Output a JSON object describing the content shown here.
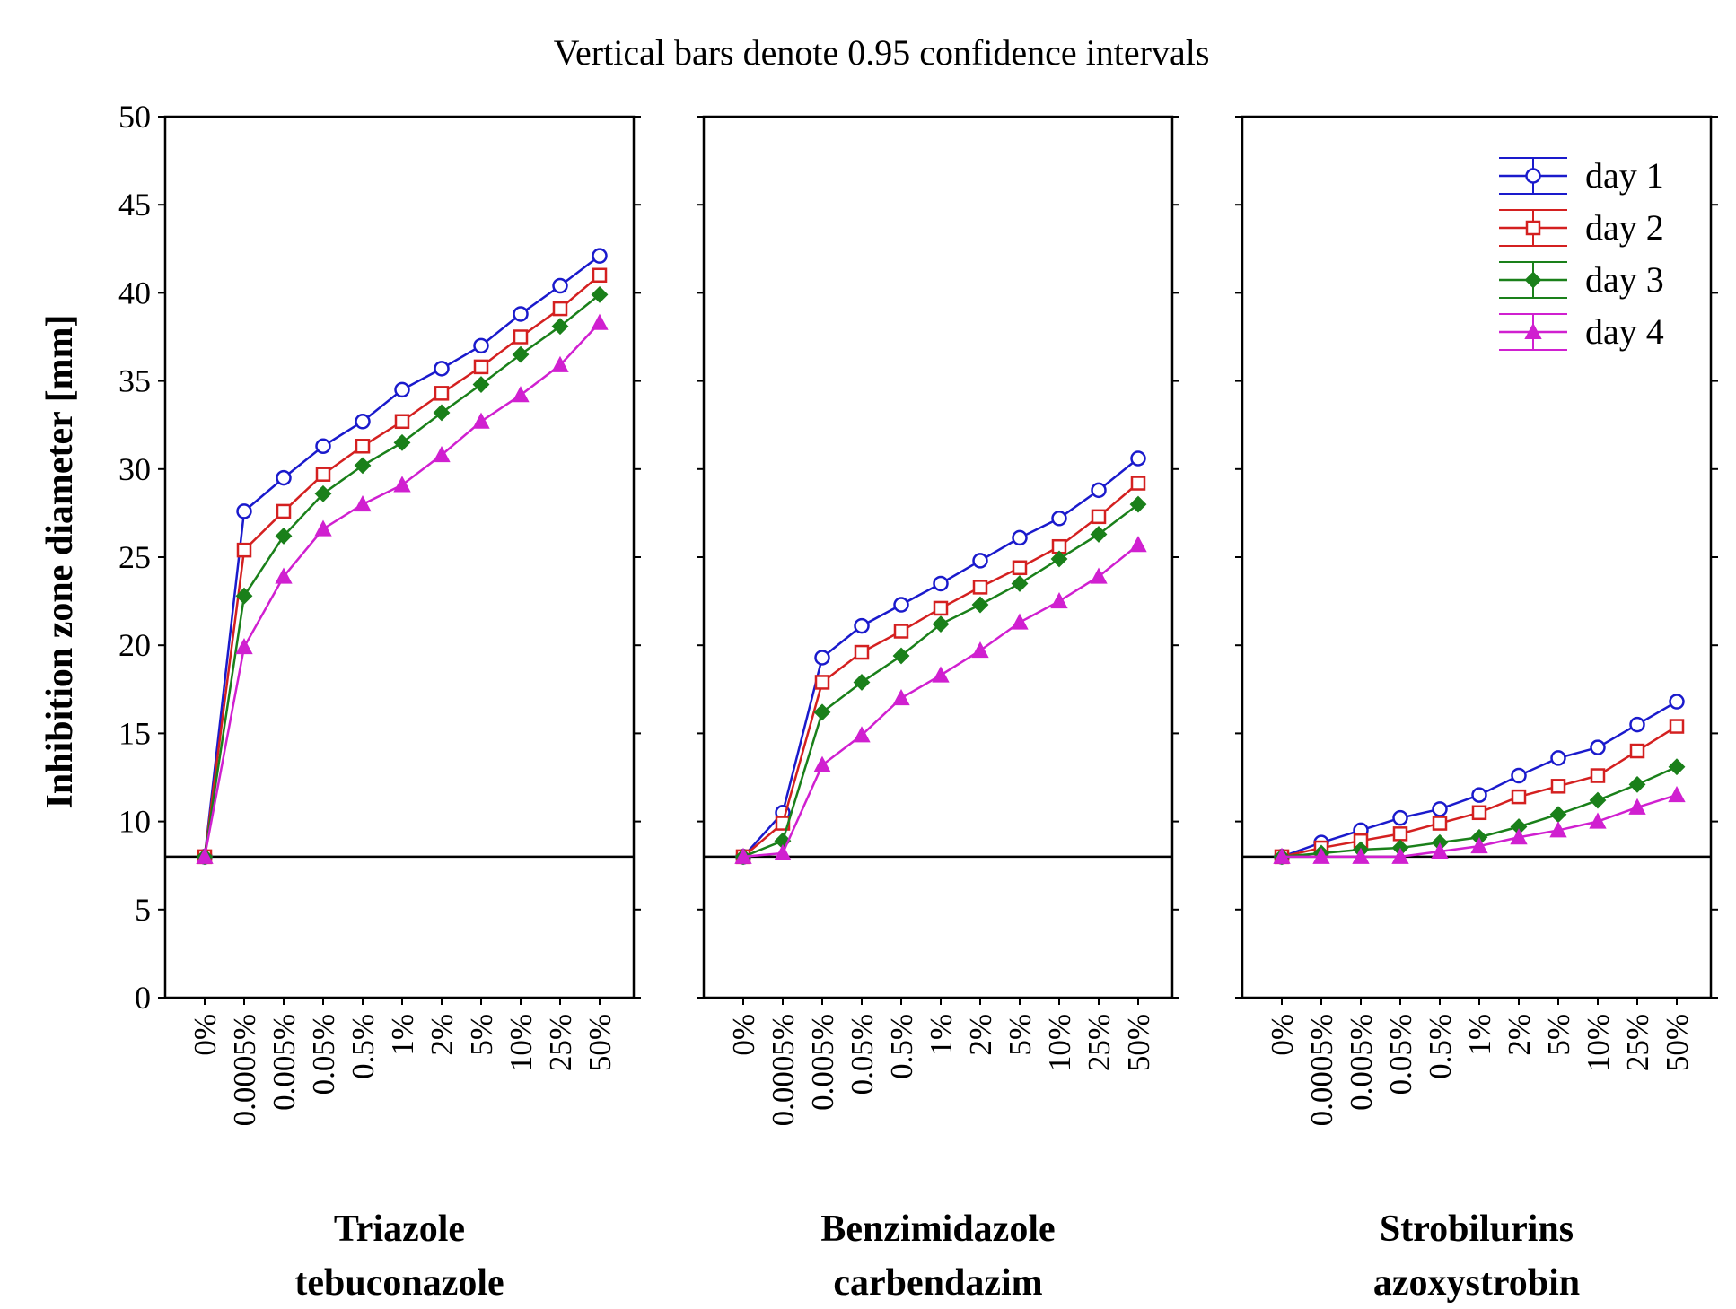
{
  "chart_data": {
    "type": "line",
    "title": "Vertical bars denote 0.95 confidence intervals",
    "ylabel": "Inhibition zone diameter [mm]",
    "ylim": [
      0,
      50
    ],
    "yticks": [
      0,
      5,
      10,
      15,
      20,
      25,
      30,
      35,
      40,
      45,
      50
    ],
    "reference_line": 8,
    "categories": [
      "0%",
      "0.0005%",
      "0.005%",
      "0.05%",
      "0.5%",
      "1%",
      "2%",
      "5%",
      "10%",
      "25%",
      "50%"
    ],
    "legend": {
      "placement": "top-right of third panel",
      "entries": [
        "day 1",
        "day 2",
        "day 3",
        "day 4"
      ]
    },
    "series_styles": [
      {
        "name": "day 1",
        "color": "#1a1acc",
        "marker": "circle"
      },
      {
        "name": "day 2",
        "color": "#d42020",
        "marker": "square"
      },
      {
        "name": "day 3",
        "color": "#1a801a",
        "marker": "diamond"
      },
      {
        "name": "day 4",
        "color": "#d020d0",
        "marker": "triangle"
      }
    ],
    "panels": [
      {
        "label_line1": "Triazole",
        "label_line2": "tebuconazole",
        "series": [
          {
            "name": "day 1",
            "values": [
              8.0,
              27.6,
              29.5,
              31.3,
              32.7,
              34.5,
              35.7,
              37.0,
              38.8,
              40.4,
              42.1
            ]
          },
          {
            "name": "day 2",
            "values": [
              8.0,
              25.4,
              27.6,
              29.7,
              31.3,
              32.7,
              34.3,
              35.8,
              37.5,
              39.1,
              41.0
            ]
          },
          {
            "name": "day 3",
            "values": [
              8.0,
              22.8,
              26.2,
              28.6,
              30.2,
              31.5,
              33.2,
              34.8,
              36.5,
              38.1,
              39.9
            ]
          },
          {
            "name": "day 4",
            "values": [
              8.0,
              19.9,
              23.9,
              26.6,
              28.0,
              29.1,
              30.8,
              32.7,
              34.2,
              35.9,
              38.3
            ]
          }
        ]
      },
      {
        "label_line1": "Benzimidazole",
        "label_line2": "carbendazim",
        "series": [
          {
            "name": "day 1",
            "values": [
              8.0,
              10.5,
              19.3,
              21.1,
              22.3,
              23.5,
              24.8,
              26.1,
              27.2,
              28.8,
              30.6
            ]
          },
          {
            "name": "day 2",
            "values": [
              8.0,
              9.9,
              17.9,
              19.6,
              20.8,
              22.1,
              23.3,
              24.4,
              25.6,
              27.3,
              29.2
            ]
          },
          {
            "name": "day 3",
            "values": [
              8.0,
              8.9,
              16.2,
              17.9,
              19.4,
              21.2,
              22.3,
              23.5,
              24.9,
              26.3,
              28.0
            ]
          },
          {
            "name": "day 4",
            "values": [
              8.0,
              8.2,
              13.2,
              14.9,
              17.0,
              18.3,
              19.7,
              21.3,
              22.5,
              23.9,
              25.7
            ]
          }
        ]
      },
      {
        "label_line1": "Strobilurins",
        "label_line2": "azoxystrobin",
        "series": [
          {
            "name": "day 1",
            "values": [
              8.0,
              8.8,
              9.5,
              10.2,
              10.7,
              11.5,
              12.6,
              13.6,
              14.2,
              15.5,
              16.8
            ]
          },
          {
            "name": "day 2",
            "values": [
              8.0,
              8.5,
              8.9,
              9.3,
              9.9,
              10.5,
              11.4,
              12.0,
              12.6,
              14.0,
              15.4
            ]
          },
          {
            "name": "day 3",
            "values": [
              8.0,
              8.2,
              8.4,
              8.5,
              8.8,
              9.1,
              9.7,
              10.4,
              11.2,
              12.1,
              13.1
            ]
          },
          {
            "name": "day 4",
            "values": [
              8.0,
              8.0,
              8.0,
              8.0,
              8.3,
              8.6,
              9.1,
              9.5,
              10.0,
              10.8,
              11.5
            ]
          }
        ]
      }
    ]
  }
}
